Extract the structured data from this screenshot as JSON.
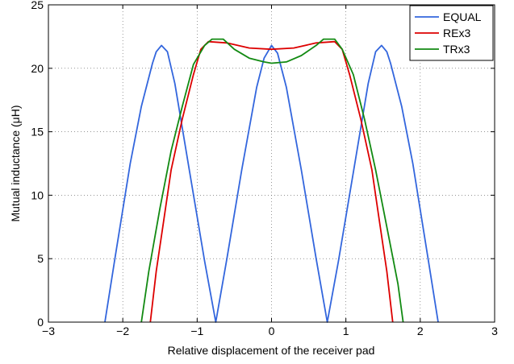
{
  "chart_data": {
    "type": "line",
    "title": "",
    "xlabel": "Relative displacement of the receiver pad",
    "ylabel": "Mutual inductance (μH)",
    "xlim": [
      -3,
      3
    ],
    "ylim": [
      0,
      25
    ],
    "xticks": [
      -3,
      -2,
      -1,
      0,
      1,
      2,
      3
    ],
    "yticks": [
      0,
      5,
      10,
      15,
      20,
      25
    ],
    "grid": true,
    "legend_position": "top-right",
    "series": [
      {
        "name": "EQUAL",
        "color": "#3366dd",
        "points": [
          [
            -2.24,
            0
          ],
          [
            -2.1,
            5.2
          ],
          [
            -1.9,
            12.5
          ],
          [
            -1.75,
            17.0
          ],
          [
            -1.6,
            20.4
          ],
          [
            -1.55,
            21.3
          ],
          [
            -1.48,
            21.8
          ],
          [
            -1.4,
            21.3
          ],
          [
            -1.3,
            18.8
          ],
          [
            -1.1,
            11.8
          ],
          [
            -0.9,
            4.8
          ],
          [
            -0.75,
            0
          ],
          [
            -0.6,
            5.0
          ],
          [
            -0.4,
            12.0
          ],
          [
            -0.2,
            18.5
          ],
          [
            -0.1,
            20.8
          ],
          [
            0.0,
            21.8
          ],
          [
            0.08,
            21.2
          ],
          [
            0.2,
            18.5
          ],
          [
            0.4,
            12.0
          ],
          [
            0.6,
            5.0
          ],
          [
            0.75,
            0
          ],
          [
            0.9,
            4.8
          ],
          [
            1.1,
            11.8
          ],
          [
            1.3,
            18.8
          ],
          [
            1.4,
            21.3
          ],
          [
            1.48,
            21.8
          ],
          [
            1.55,
            21.3
          ],
          [
            1.6,
            20.4
          ],
          [
            1.75,
            17.0
          ],
          [
            1.9,
            12.5
          ],
          [
            2.1,
            5.2
          ],
          [
            2.24,
            0
          ]
        ]
      },
      {
        "name": "REx3",
        "color": "#dd0000",
        "points": [
          [
            -1.63,
            0
          ],
          [
            -1.55,
            4.0
          ],
          [
            -1.45,
            8.0
          ],
          [
            -1.35,
            12.0
          ],
          [
            -1.2,
            16.0
          ],
          [
            -1.05,
            19.5
          ],
          [
            -0.95,
            21.5
          ],
          [
            -0.85,
            22.1
          ],
          [
            -0.6,
            22.0
          ],
          [
            -0.3,
            21.6
          ],
          [
            0.0,
            21.5
          ],
          [
            0.3,
            21.6
          ],
          [
            0.6,
            22.0
          ],
          [
            0.85,
            22.1
          ],
          [
            0.95,
            21.5
          ],
          [
            1.05,
            19.5
          ],
          [
            1.2,
            16.0
          ],
          [
            1.35,
            12.0
          ],
          [
            1.45,
            8.0
          ],
          [
            1.55,
            4.0
          ],
          [
            1.63,
            0
          ]
        ]
      },
      {
        "name": "TRx3",
        "color": "#128a12",
        "points": [
          [
            -1.75,
            0
          ],
          [
            -1.65,
            4.0
          ],
          [
            -1.5,
            9.0
          ],
          [
            -1.35,
            13.5
          ],
          [
            -1.2,
            17.0
          ],
          [
            -1.05,
            20.3
          ],
          [
            -0.9,
            21.8
          ],
          [
            -0.8,
            22.3
          ],
          [
            -0.65,
            22.3
          ],
          [
            -0.5,
            21.5
          ],
          [
            -0.3,
            20.8
          ],
          [
            -0.1,
            20.5
          ],
          [
            0.0,
            20.4
          ],
          [
            0.2,
            20.5
          ],
          [
            0.4,
            21.0
          ],
          [
            0.6,
            21.8
          ],
          [
            0.7,
            22.3
          ],
          [
            0.85,
            22.3
          ],
          [
            0.95,
            21.5
          ],
          [
            1.1,
            19.5
          ],
          [
            1.25,
            16.0
          ],
          [
            1.4,
            12.0
          ],
          [
            1.55,
            7.5
          ],
          [
            1.7,
            3.0
          ],
          [
            1.77,
            0
          ]
        ]
      }
    ]
  }
}
